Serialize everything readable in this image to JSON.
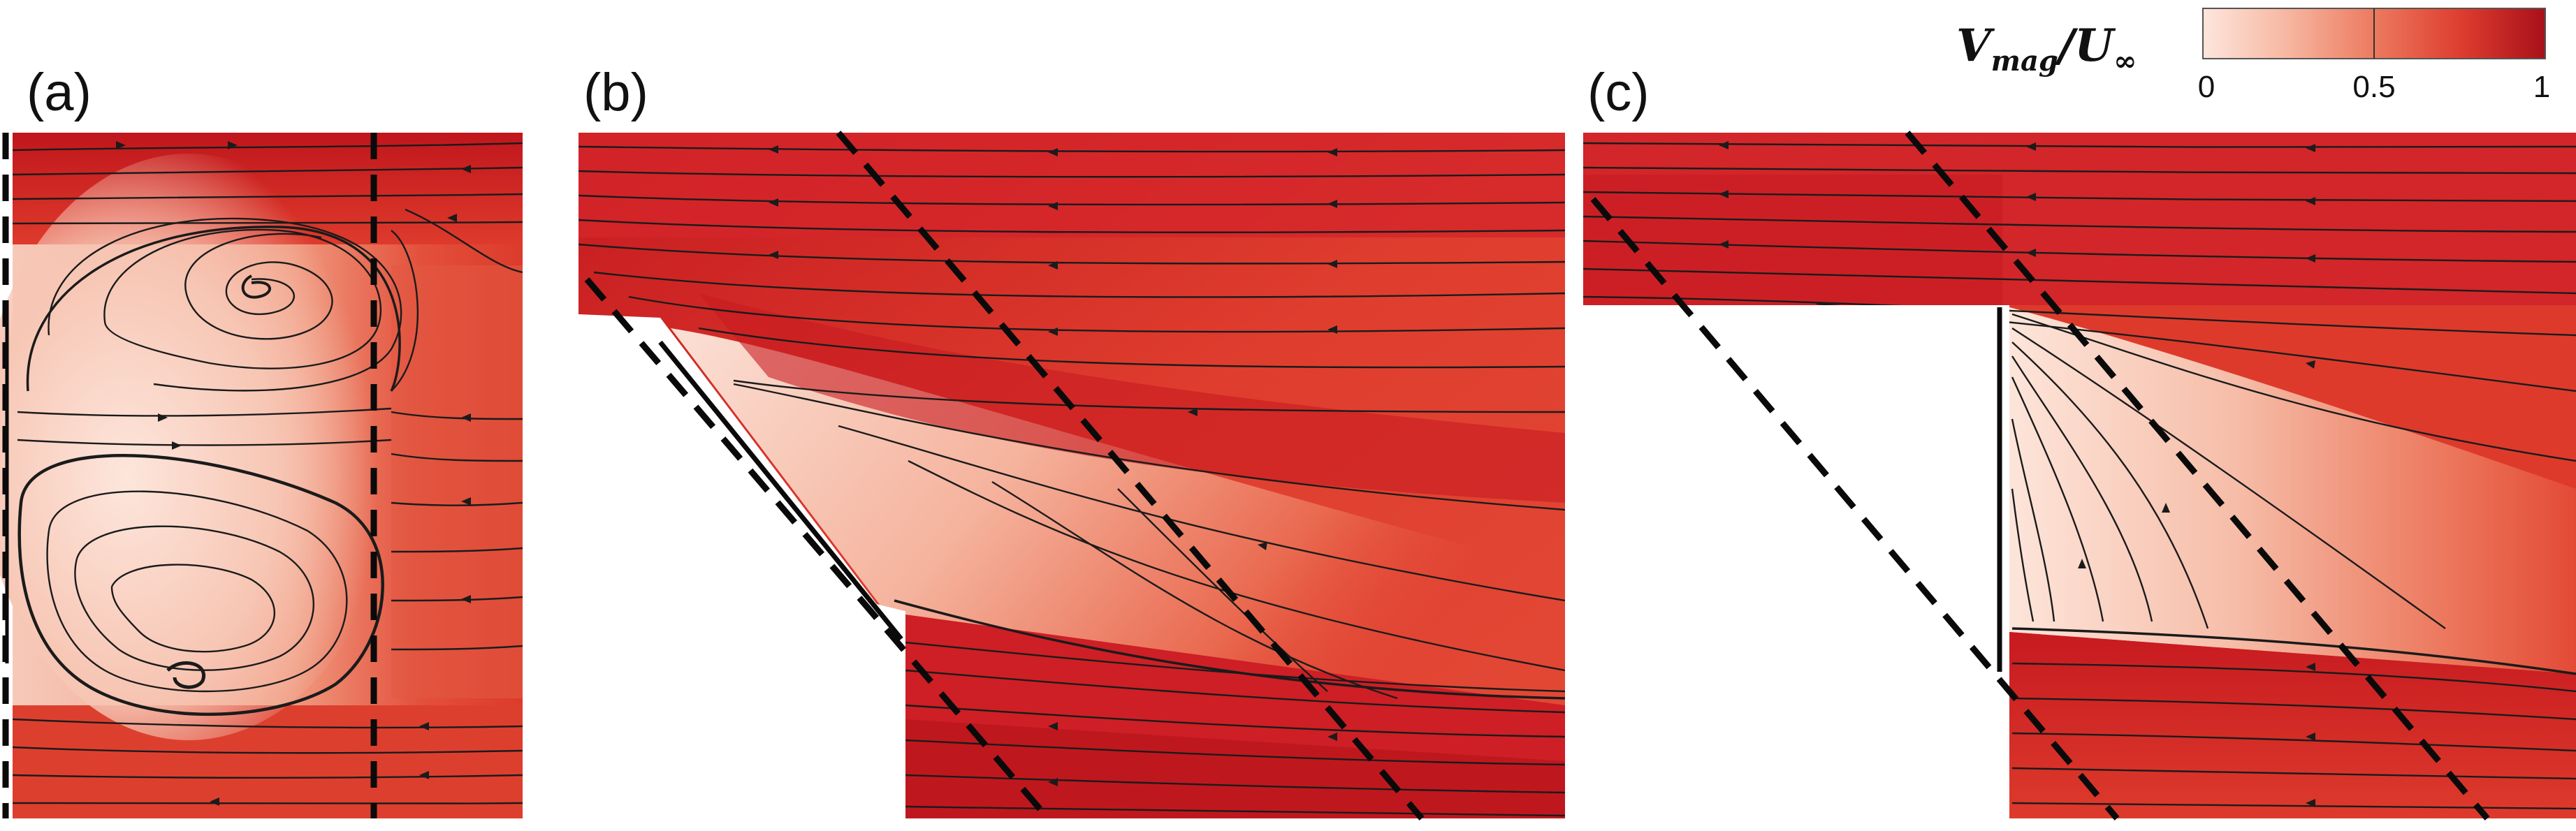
{
  "panels": [
    {
      "label": "(a)"
    },
    {
      "label": "(b)"
    },
    {
      "label": "(c)"
    }
  ],
  "colorbar": {
    "quantity": "V",
    "quantity_sub": "mag",
    "over": "/U",
    "over_sub": "∞",
    "ticks": [
      "0",
      "0.5",
      "1"
    ],
    "colors": [
      "#fbe3da",
      "#f3a990",
      "#e65a45",
      "#d1262a",
      "#a50f15"
    ]
  },
  "colors": {
    "field_base": "#e2412f",
    "field_dark": "#b8141b",
    "wake_light": "#f6c4b3",
    "streamline": "#1b1b1b",
    "dashed": "#0a0a0a"
  }
}
